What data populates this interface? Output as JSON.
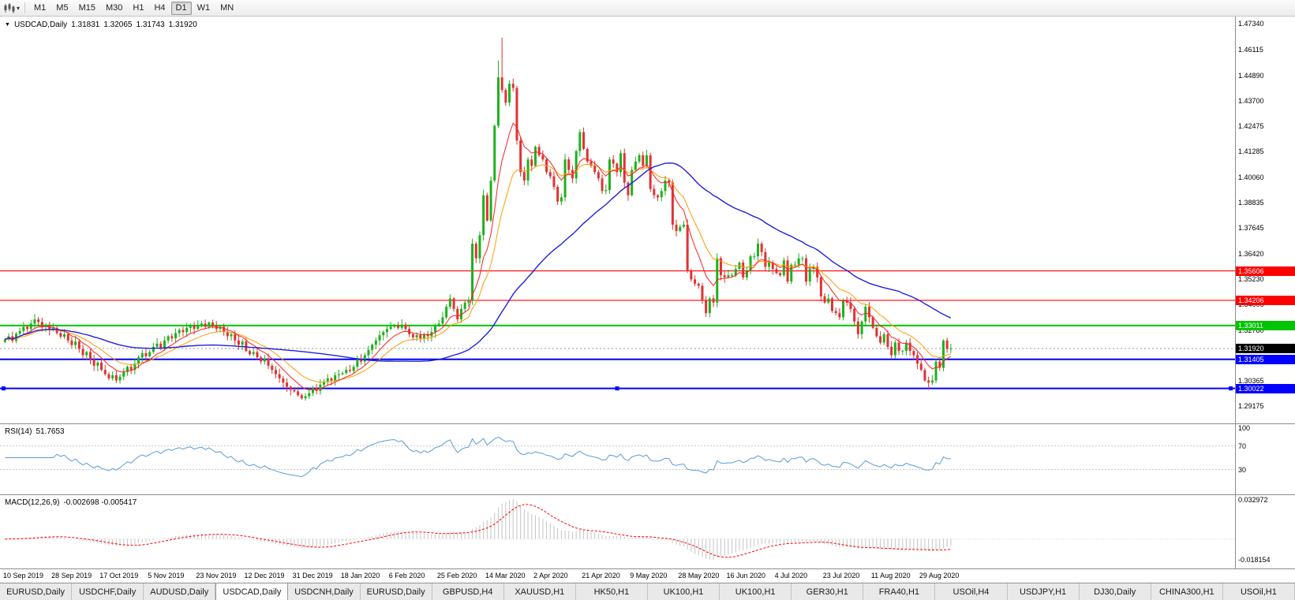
{
  "toolbar": {
    "timeframes": [
      "M1",
      "M5",
      "M15",
      "M30",
      "H1",
      "H4",
      "D1",
      "W1",
      "MN"
    ],
    "active_timeframe": "D1"
  },
  "chart": {
    "title": "USDCAD,Daily",
    "open": "1.31831",
    "high": "1.32065",
    "low": "1.31743",
    "close": "1.31920",
    "rsi_label": "RSI(14)",
    "rsi_value": "51.7653",
    "macd_label": "MACD(12,26,9)",
    "macd_values": "-0.002698 -0.005417"
  },
  "chart_data": {
    "type": "candlestick",
    "symbol": "USDCAD",
    "timeframe": "Daily",
    "colors": {
      "up": "#1db11d",
      "down": "#e03232"
    },
    "y_range": [
      1.2836,
      1.4769
    ],
    "bars_per_label": 13,
    "closes": [
      1.3235,
      1.325,
      1.3228,
      1.3262,
      1.3275,
      1.3295,
      1.3285,
      1.331,
      1.333,
      1.3318,
      1.3295,
      1.3305,
      1.328,
      1.329,
      1.3265,
      1.3248,
      1.326,
      1.323,
      1.3208,
      1.3225,
      1.319,
      1.316,
      1.3175,
      1.314,
      1.311,
      1.3125,
      1.309,
      1.307,
      1.305,
      1.3065,
      1.304,
      1.3058,
      1.308,
      1.3105,
      1.309,
      1.312,
      1.315,
      1.317,
      1.3155,
      1.3175,
      1.32,
      1.3215,
      1.3195,
      1.323,
      1.325,
      1.324,
      1.3265,
      1.328,
      1.327,
      1.329,
      1.33,
      1.3285,
      1.33,
      1.331,
      1.3295,
      1.3315,
      1.33,
      1.3285,
      1.3295,
      1.327,
      1.325,
      1.326,
      1.323,
      1.321,
      1.3225,
      1.318,
      1.3165,
      1.3175,
      1.315,
      1.313,
      1.3145,
      1.311,
      1.309,
      1.307,
      1.305,
      1.303,
      1.301,
      1.2995,
      1.2988,
      1.297,
      1.2955,
      1.2965,
      1.298,
      1.3005,
      1.299,
      1.302,
      1.3035,
      1.305,
      1.304,
      1.3065,
      1.307,
      1.3075,
      1.309,
      1.3085,
      1.3105,
      1.314,
      1.313,
      1.316,
      1.3185,
      1.321,
      1.323,
      1.3255,
      1.327,
      1.3285,
      1.3295,
      1.33,
      1.329,
      1.3305,
      1.3285,
      1.326,
      1.3245,
      1.3255,
      1.324,
      1.326,
      1.325,
      1.327,
      1.33,
      1.331,
      1.334,
      1.339,
      1.343,
      1.338,
      1.333,
      1.338,
      1.341,
      1.342,
      1.369,
      1.362,
      1.373,
      1.392,
      1.38,
      1.399,
      1.425,
      1.448,
      1.442,
      1.436,
      1.445,
      1.443,
      1.418,
      1.403,
      1.399,
      1.409,
      1.406,
      1.415,
      1.411,
      1.409,
      1.403,
      1.401,
      1.396,
      1.389,
      1.391,
      1.409,
      1.404,
      1.4,
      1.413,
      1.422,
      1.414,
      1.408,
      1.406,
      1.403,
      1.4,
      1.394,
      1.3945,
      1.409,
      1.407,
      1.403,
      1.412,
      1.398,
      1.392,
      1.404,
      1.408,
      1.411,
      1.406,
      1.411,
      1.395,
      1.392,
      1.391,
      1.394,
      1.399,
      1.398,
      1.378,
      1.375,
      1.377,
      1.378,
      1.356,
      1.352,
      1.35,
      1.349,
      1.342,
      1.336,
      1.343,
      1.341,
      1.362,
      1.354,
      1.353,
      1.354,
      1.354,
      1.357,
      1.36,
      1.353,
      1.356,
      1.363,
      1.363,
      1.369,
      1.365,
      1.358,
      1.36,
      1.357,
      1.355,
      1.354,
      1.361,
      1.351,
      1.359,
      1.359,
      1.362,
      1.362,
      1.351,
      1.357,
      1.358,
      1.353,
      1.344,
      1.341,
      1.343,
      1.337,
      1.336,
      1.334,
      1.342,
      1.341,
      1.338,
      1.332,
      1.326,
      1.332,
      1.339,
      1.334,
      1.329,
      1.325,
      1.322,
      1.326,
      1.32,
      1.316,
      1.322,
      1.318,
      1.318,
      1.322,
      1.318,
      1.316,
      1.312,
      1.309,
      1.304,
      1.303,
      1.304,
      1.313,
      1.31,
      1.323,
      1.319,
      1.3192
    ],
    "high_overrides": {
      "133": 1.456,
      "134": 1.4669
    },
    "low_overrides": {
      "80": 1.2949,
      "249": 1.2996
    },
    "moving_averages": [
      {
        "name": "ma-mid-orange",
        "type": "ema",
        "period": 16,
        "color": "#ff9a00",
        "width": 1
      },
      {
        "name": "ma-fast-red",
        "type": "ema",
        "period": 8,
        "color": "#ff2020",
        "width": 1
      },
      {
        "name": "ma-slow-blue",
        "type": "sma",
        "period": 50,
        "color": "#2020dd",
        "width": 1.4
      }
    ],
    "horizontal_lines": [
      {
        "label": "1.35606",
        "price": 1.35606,
        "color": "#ff0000",
        "width": 1.2
      },
      {
        "label": "1.34206",
        "price": 1.34206,
        "color": "#ff0000",
        "width": 1.2
      },
      {
        "label": "1.33011",
        "price": 1.33011,
        "color": "#00c400",
        "width": 2
      },
      {
        "label": "1.31405",
        "price": 1.31405,
        "color": "#0000ff",
        "width": 2
      },
      {
        "label": "1.30022",
        "price": 1.30022,
        "color": "#0000ff",
        "width": 2,
        "selected": true
      }
    ],
    "current_price": 1.3192,
    "current_price_label": "1.31920",
    "y_axis_labels": [
      "1.47340",
      "1.46115",
      "1.44890",
      "1.43700",
      "1.42475",
      "1.41285",
      "1.40060",
      "1.38835",
      "1.37645",
      "1.36420",
      "1.35230",
      "1.34005",
      "1.32780",
      "1.30365",
      "1.29175"
    ],
    "x_axis_labels": [
      "10 Sep 2019",
      "28 Sep 2019",
      "17 Oct 2019",
      "5 Nov 2019",
      "23 Nov 2019",
      "12 Dec 2019",
      "31 Dec 2019",
      "18 Jan 2020",
      "6 Feb 2020",
      "25 Feb 2020",
      "14 Mar 2020",
      "2 Apr 2020",
      "21 Apr 2020",
      "9 May 2020",
      "28 May 2020",
      "16 Jun 2020",
      "4 Jul 2020",
      "23 Jul 2020",
      "11 Aug 2020",
      "29 Aug 2020"
    ],
    "rsi": {
      "period": 14,
      "color": "#5b9bd5",
      "levels_dashed": [
        70,
        30
      ],
      "axis_labels": [
        "100",
        "70",
        "30"
      ],
      "range": [
        0,
        100
      ]
    },
    "macd": {
      "fast": 12,
      "slow": 26,
      "signal": 9,
      "histogram_color": "#c4c4c4",
      "signal_color": "#ff0000",
      "axis_labels": [
        "0.032972",
        "-0.018154"
      ]
    }
  },
  "tabs": {
    "labels": [
      "EURUSD,Daily",
      "USDCHF,Daily",
      "AUDUSD,Daily",
      "USDCAD,Daily",
      "USDCNH,Daily",
      "EURUSD,Daily",
      "GBPUSD,H4",
      "XAUUSD,H1",
      "HK50,H1",
      "UK100,H1",
      "UK100,H1",
      "GER30,H1",
      "FRA40,H1",
      "USOil,H4",
      "USDJPY,H1",
      "DJ30,Daily",
      "CHINA300,H1",
      "USOil,H1"
    ],
    "active_index": 3
  }
}
